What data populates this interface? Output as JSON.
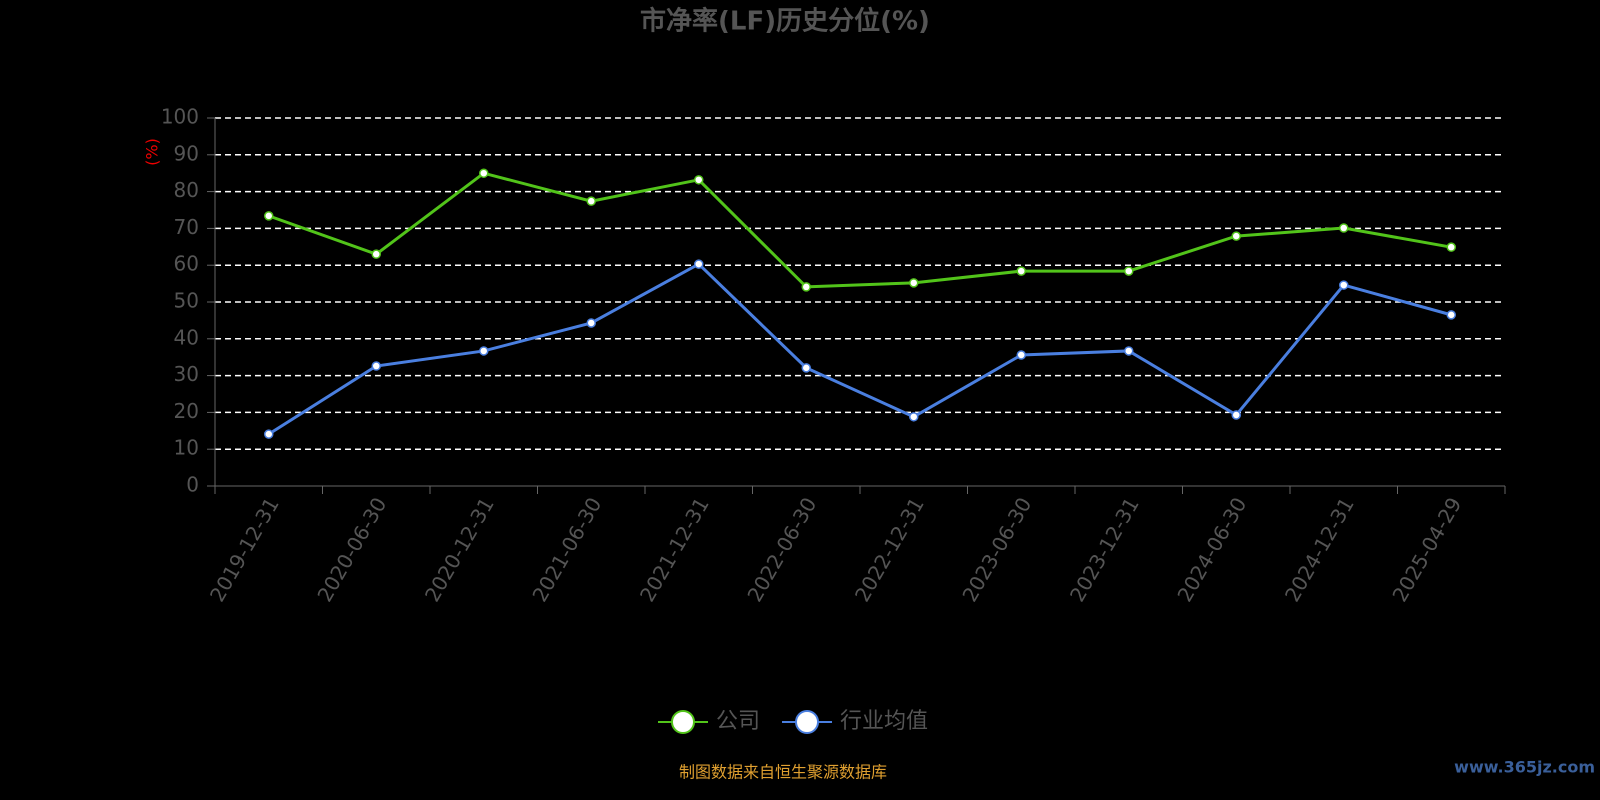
{
  "chart_data": {
    "type": "line",
    "title": "市净率(LF)历史分位(%)",
    "y_label": "(%)",
    "categories": [
      "2019-12-31",
      "2020-06-30",
      "2020-12-31",
      "2021-06-30",
      "2021-12-31",
      "2022-06-30",
      "2022-12-31",
      "2023-06-30",
      "2023-12-31",
      "2024-06-30",
      "2024-12-31",
      "2025-04-29"
    ],
    "series": [
      {
        "name": "公司",
        "color": "#52c41a",
        "values": [
          73.4,
          63,
          85,
          77.4,
          83.2,
          54.1,
          55.2,
          58.4,
          58.4,
          67.9,
          70.1,
          64.9
        ]
      },
      {
        "name": "行业均值",
        "color": "#4a7fe0",
        "values": [
          14.1,
          32.6,
          36.7,
          44.3,
          60.3,
          32.1,
          18.8,
          35.6,
          36.7,
          19.3,
          54.6,
          46.5
        ]
      }
    ],
    "ylim": [
      0,
      100
    ],
    "yticks": [
      0,
      10,
      20,
      30,
      40,
      50,
      60,
      70,
      80,
      90,
      100
    ],
    "grid": true,
    "source": "制图数据来自恒生聚源数据库",
    "watermark": "www.365jz.com"
  }
}
